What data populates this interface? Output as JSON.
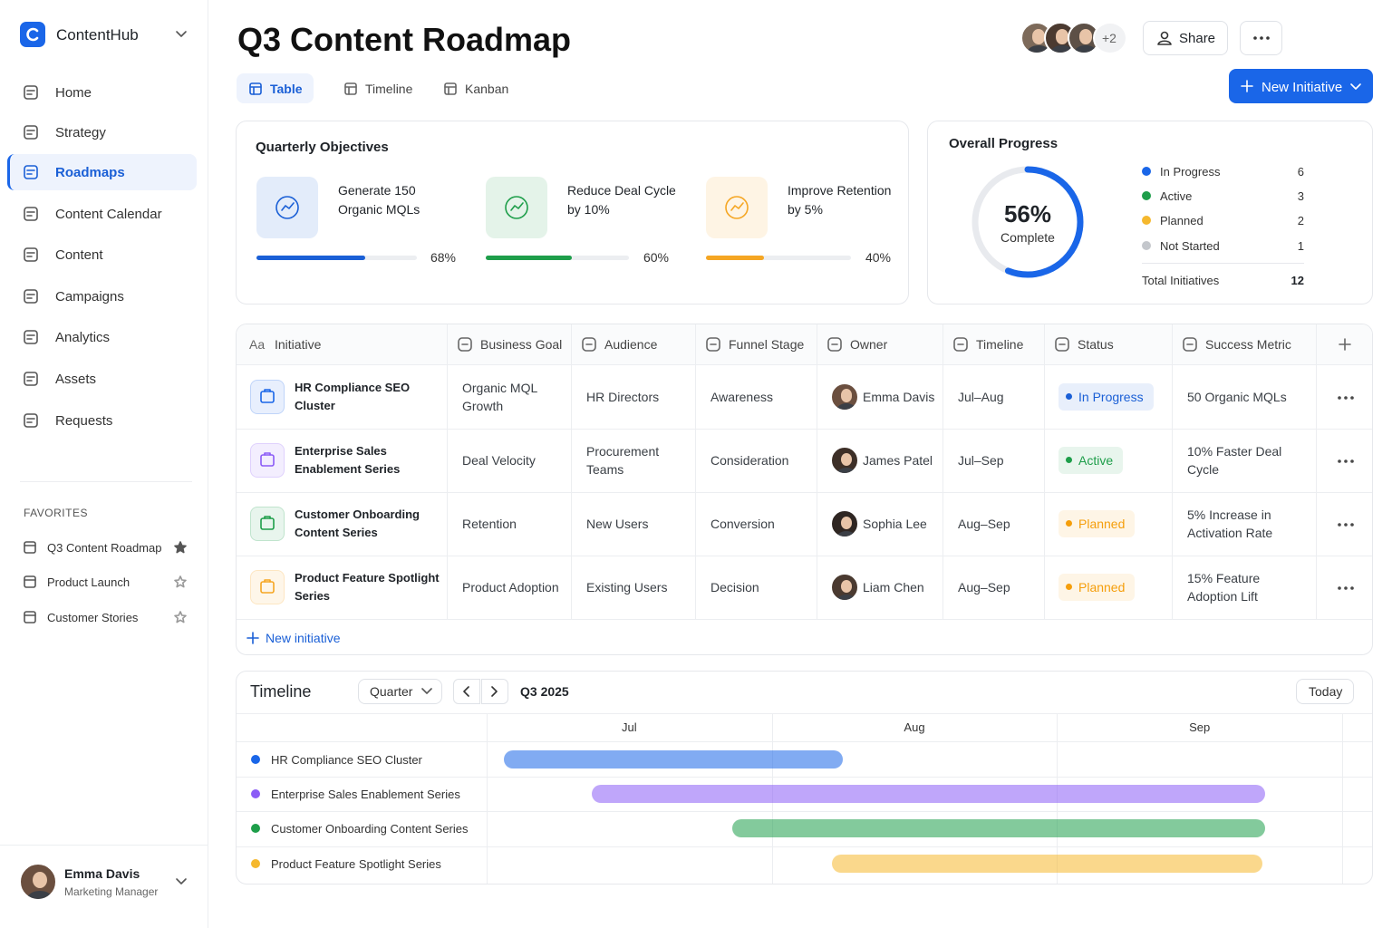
{
  "sidebar": {
    "brand": "ContentHub",
    "nav": [
      {
        "label": "Home"
      },
      {
        "label": "Strategy"
      },
      {
        "label": "Roadmaps",
        "active": true
      },
      {
        "label": "Content Calendar"
      },
      {
        "label": "Content"
      },
      {
        "label": "Campaigns"
      },
      {
        "label": "Analytics"
      },
      {
        "label": "Assets"
      },
      {
        "label": "Requests"
      }
    ],
    "favorites_title": "FAVORITES",
    "favorites": [
      {
        "label": "Q3 Content Roadmap",
        "starred": true
      },
      {
        "label": "Product Launch",
        "starred": false
      },
      {
        "label": "Customer Stories",
        "starred": false
      }
    ],
    "user": {
      "name": "Emma Davis",
      "role": "Marketing Manager"
    }
  },
  "header": {
    "title": "Q3 Content Roadmap",
    "tabs": [
      {
        "label": "Table",
        "active": true
      },
      {
        "label": "Timeline"
      },
      {
        "label": "Kanban"
      }
    ],
    "collaborators_more": "+2",
    "share": "Share",
    "new_button": "New Initiative"
  },
  "objectives": {
    "title": "Quarterly Objectives",
    "items": [
      {
        "label": "Generate 150 Organic MQLs",
        "value": 68,
        "value_label": "68%",
        "color": "#1a5fd6"
      },
      {
        "label": "Reduce Deal Cycle by 10%",
        "value": 60,
        "value_label": "60%",
        "color": "#1e9e4a"
      },
      {
        "label": "Improve Retention by 5%",
        "value": 40,
        "value_label": "40%",
        "color": "#f5a623"
      }
    ]
  },
  "progress": {
    "title": "Overall Progress",
    "value": 56,
    "value_label": "56%",
    "caption": "Complete",
    "color": "#1a66e8",
    "legend": [
      {
        "name": "In Progress",
        "color": "#1a66e8",
        "value": 6
      },
      {
        "name": "Active",
        "color": "#1e9e4a",
        "value": 3
      },
      {
        "name": "Planned",
        "color": "#f5b82e",
        "value": 2
      },
      {
        "name": "Not Started",
        "color": "#c4c7cc",
        "value": 1
      }
    ],
    "total_label": "Total Initiatives",
    "total": 12
  },
  "table": {
    "title_icon": "Aa",
    "columns": [
      "Initiative",
      "Business Goal",
      "Audience",
      "Funnel Stage",
      "Owner",
      "Timeline",
      "Status",
      "Success Metric"
    ],
    "rows": [
      {
        "initiative": "HR Compliance SEO Cluster",
        "icon_color": "#1a66e8",
        "goal": "Organic MQL Growth",
        "audience": "HR Directors",
        "funnel": "Awareness",
        "owner": "Emma Davis",
        "timeline": "Jul–Aug",
        "status": "In Progress",
        "status_color": "#1a5fd6",
        "metric": "50 Organic MQLs"
      },
      {
        "initiative": "Enterprise Sales Enablement Series",
        "icon_color": "#8b5cf6",
        "goal": "Deal Velocity",
        "audience": "Procurement Teams",
        "funnel": "Consideration",
        "owner": "James Patel",
        "timeline": "Jul–Sep",
        "status": "Active",
        "status_color": "#1e9e4a",
        "metric": "10% Faster Deal Cycle"
      },
      {
        "initiative": "Customer Onboarding Content Series",
        "icon_color": "#1e9e4a",
        "goal": "Retention",
        "audience": "New Users",
        "funnel": "Conversion",
        "owner": "Sophia Lee",
        "timeline": "Aug–Sep",
        "status": "Planned",
        "status_color": "#f59e0b",
        "metric": "5% Increase in Activation Rate"
      },
      {
        "initiative": "Product Feature Spotlight Series",
        "icon_color": "#f5a623",
        "goal": "Product Adoption",
        "audience": "Existing Users",
        "funnel": "Decision",
        "owner": "Liam Chen",
        "timeline": "Aug–Sep",
        "status": "Planned",
        "status_color": "#f59e0b",
        "metric": "15% Feature Adoption Lift"
      }
    ],
    "add_row": "New initiative"
  },
  "timeline": {
    "title": "Timeline",
    "scale": "Quarter",
    "period": "Q3 2025",
    "today": "Today",
    "months": [
      "Jul",
      "Aug",
      "Sep"
    ],
    "xlim": [
      0,
      3
    ],
    "rows": [
      {
        "name": "HR Compliance SEO Cluster",
        "color": "#1a66e8",
        "start": 0.06,
        "end": 1.25
      },
      {
        "name": "Enterprise Sales Enablement Series",
        "color": "#8b5cf6",
        "start": 0.37,
        "end": 2.73
      },
      {
        "name": "Customer Onboarding Content Series",
        "color": "#1e9e4a",
        "start": 0.86,
        "end": 2.73
      },
      {
        "name": "Product Feature Spotlight Series",
        "color": "#f5b82e",
        "start": 1.21,
        "end": 2.72
      }
    ]
  }
}
